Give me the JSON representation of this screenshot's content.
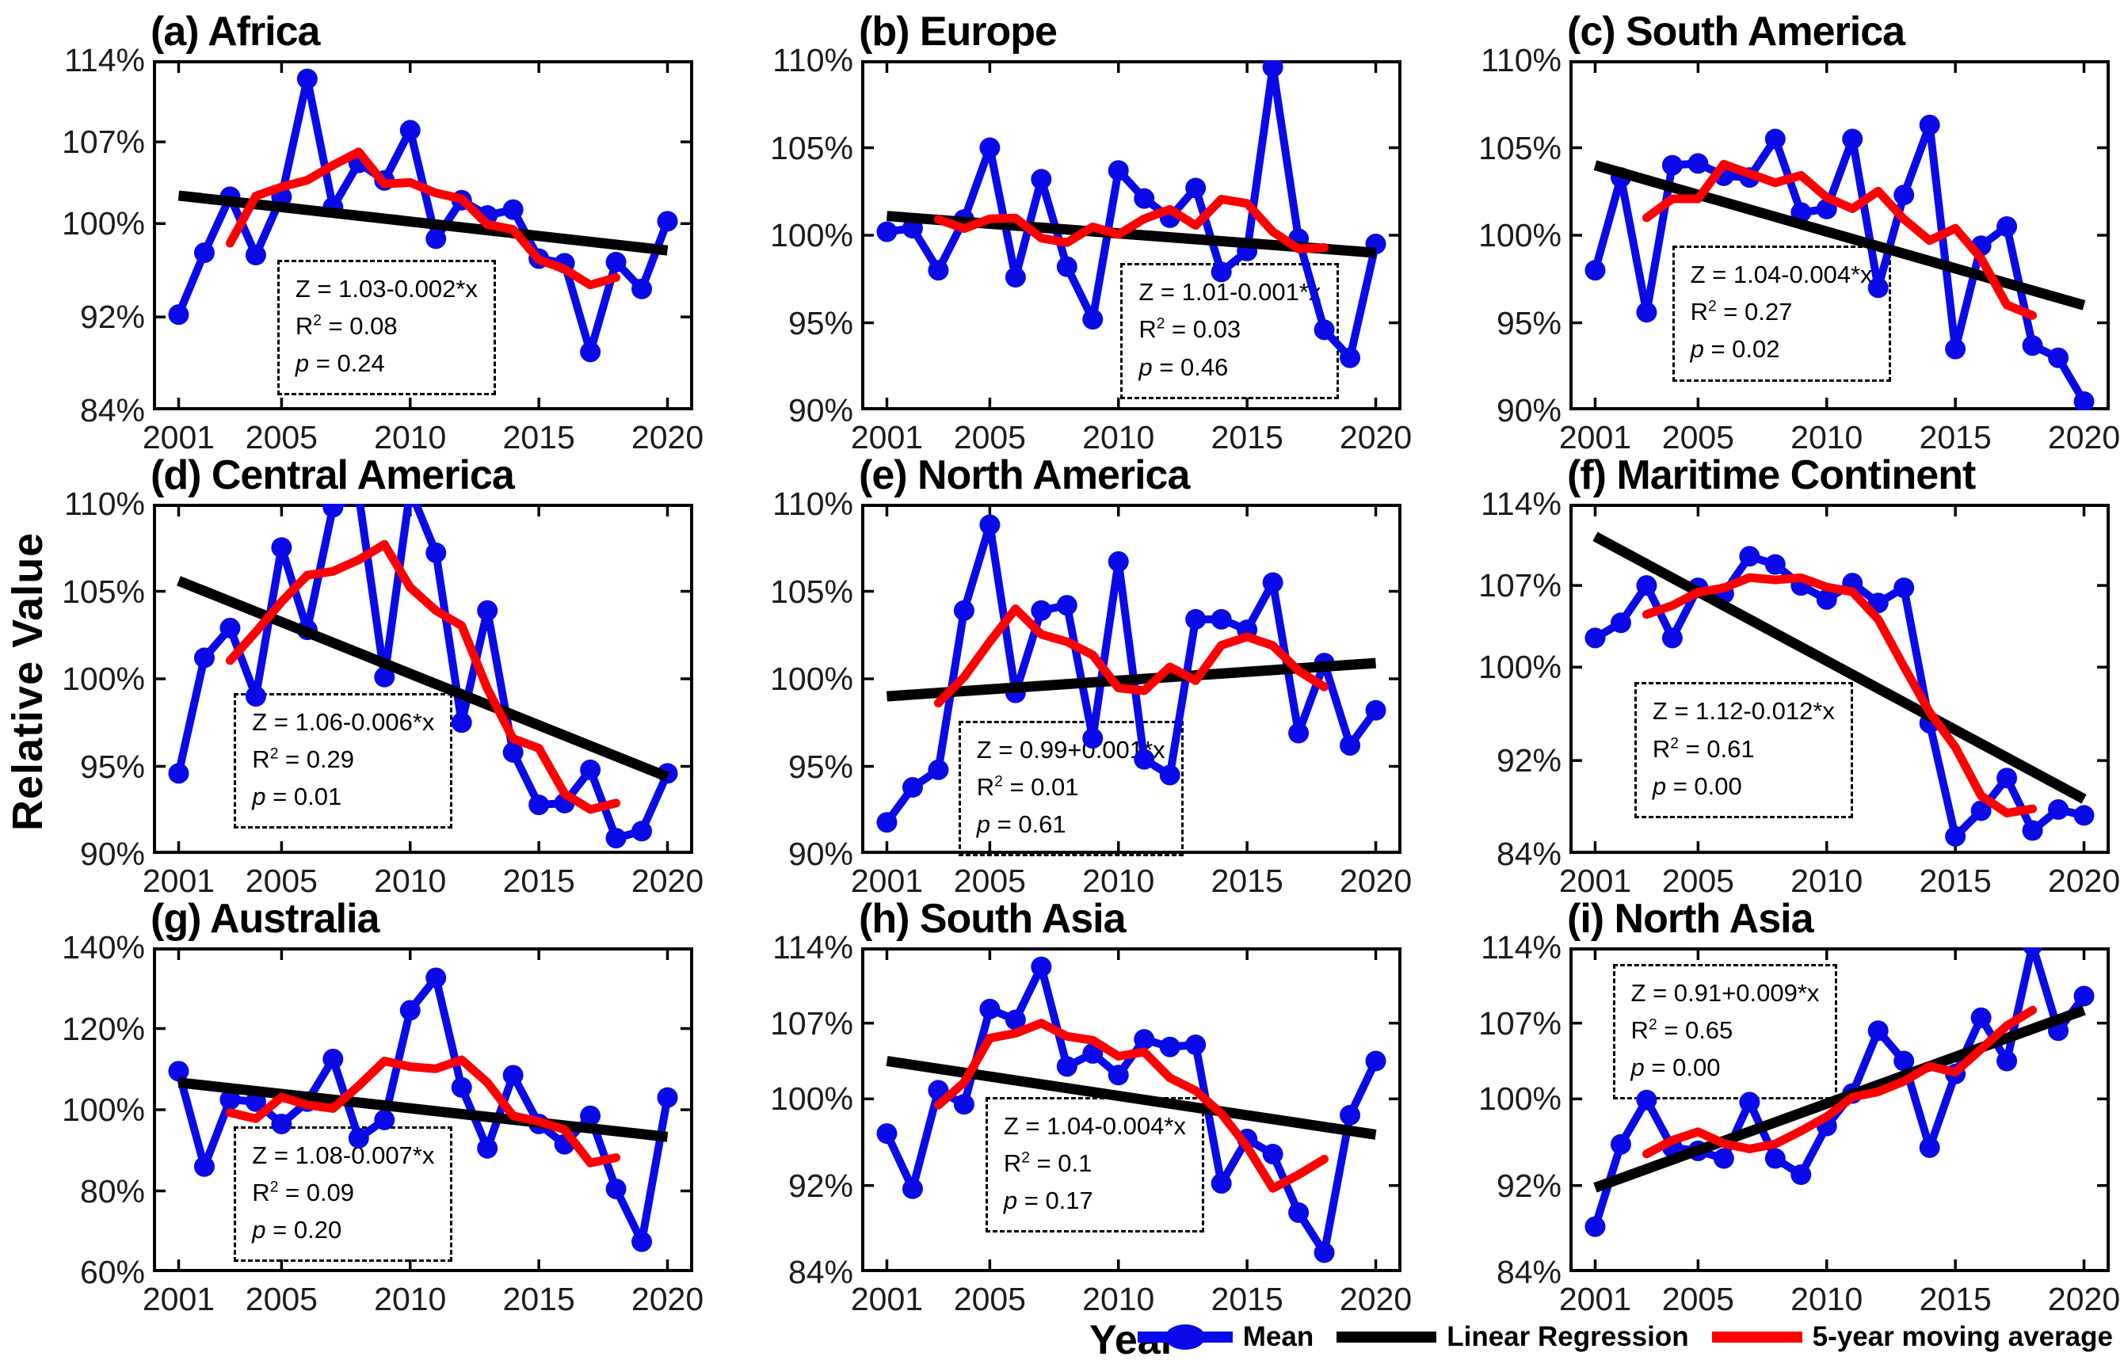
{
  "figure": {
    "ylabel": "Relative Value",
    "xlabel": "Year",
    "colors": {
      "mean": "#0a0ae8",
      "regression": "#000000",
      "moving_average": "#ff0000"
    },
    "legend": [
      {
        "label": "Mean",
        "swatch": "blue-line-with-circle-marker"
      },
      {
        "label": "Linear Regression",
        "swatch": "black-line"
      },
      {
        "label": "5-year moving average",
        "swatch": "red-line"
      }
    ]
  },
  "chart_data": [
    {
      "type": "line",
      "panel": "a",
      "title": "(a) Africa",
      "x": [
        2001,
        2002,
        2003,
        2004,
        2005,
        2006,
        2007,
        2008,
        2009,
        2010,
        2011,
        2012,
        2013,
        2014,
        2015,
        2016,
        2017,
        2018,
        2019,
        2020
      ],
      "series": [
        {
          "name": "Mean",
          "values": [
            92.2,
            97.5,
            102.3,
            97.3,
            102.3,
            112.4,
            101.4,
            105.2,
            103.7,
            108.0,
            98.7,
            102.0,
            100.7,
            101.2,
            97.0,
            96.6,
            89.0,
            96.7,
            94.4,
            100.2
          ]
        },
        {
          "name": "Linear Regression",
          "x_span": [
            2001,
            2020
          ],
          "endpoints_y": [
            102.4,
            97.7
          ]
        },
        {
          "name": "5-year moving average",
          "derived": "centered 5-year moving average of Mean, plotted 2003-2018"
        }
      ],
      "ylim": [
        84,
        114
      ],
      "ytick_values": [
        84,
        92,
        100,
        107,
        114
      ],
      "yticks": [
        "84%",
        "92%",
        "100%",
        "107%",
        "114%"
      ],
      "xticks": [
        2001,
        2005,
        2010,
        2015,
        2020
      ],
      "annotation": {
        "line1": "Z = 1.03-0.002*x",
        "r2_label": "R",
        "r2_sup": "2",
        "r2_eq": " = 0.08",
        "p_label": "p",
        "p_eq": " = 0.24"
      },
      "annotation_pos": {
        "left_pct": 23,
        "top_pct": 57
      }
    },
    {
      "type": "line",
      "panel": "b",
      "title": "(b) Europe",
      "x": [
        2001,
        2002,
        2003,
        2004,
        2005,
        2006,
        2007,
        2008,
        2009,
        2010,
        2011,
        2012,
        2013,
        2014,
        2015,
        2016,
        2017,
        2018,
        2019,
        2020
      ],
      "series": [
        {
          "name": "Mean",
          "values": [
            100.2,
            100.4,
            98.0,
            100.9,
            105.0,
            97.6,
            103.2,
            98.2,
            95.2,
            103.7,
            102.1,
            101.0,
            102.7,
            97.9,
            99.1,
            109.6,
            99.8,
            94.6,
            93.0,
            99.5
          ]
        },
        {
          "name": "Linear Regression",
          "x_span": [
            2001,
            2020
          ],
          "endpoints_y": [
            101.1,
            99.0
          ]
        },
        {
          "name": "5-year moving average",
          "derived": "centered 5-year moving average of Mean, plotted 2003-2018"
        }
      ],
      "ylim": [
        90,
        110
      ],
      "ytick_values": [
        90,
        95,
        100,
        105,
        110
      ],
      "yticks": [
        "90%",
        "95%",
        "100%",
        "105%",
        "110%"
      ],
      "xticks": [
        2001,
        2005,
        2010,
        2015,
        2020
      ],
      "annotation": {
        "line1": "Z = 1.01-0.001*x",
        "r2_label": "R",
        "r2_sup": "2",
        "r2_eq": " = 0.03",
        "p_label": "p",
        "p_eq": " = 0.46"
      },
      "annotation_pos": {
        "left_pct": 48,
        "top_pct": 58
      }
    },
    {
      "type": "line",
      "panel": "c",
      "title": "(c) South America",
      "x": [
        2001,
        2002,
        2003,
        2004,
        2005,
        2006,
        2007,
        2008,
        2009,
        2010,
        2011,
        2012,
        2013,
        2014,
        2015,
        2016,
        2017,
        2018,
        2019,
        2020
      ],
      "series": [
        {
          "name": "Mean",
          "values": [
            98.0,
            103.3,
            95.6,
            104.0,
            104.1,
            103.4,
            103.3,
            105.5,
            101.3,
            101.5,
            105.5,
            97.0,
            102.3,
            106.3,
            93.5,
            99.4,
            100.5,
            93.7,
            93.0,
            90.5
          ]
        },
        {
          "name": "Linear Regression",
          "x_span": [
            2001,
            2020
          ],
          "endpoints_y": [
            104.0,
            96.0
          ]
        },
        {
          "name": "5-year moving average",
          "derived": "centered 5-year moving average of Mean, plotted 2003-2018"
        }
      ],
      "ylim": [
        90,
        110
      ],
      "ytick_values": [
        90,
        95,
        100,
        105,
        110
      ],
      "yticks": [
        "90%",
        "95%",
        "100%",
        "105%",
        "110%"
      ],
      "xticks": [
        2001,
        2005,
        2010,
        2015,
        2020
      ],
      "annotation": {
        "line1": "Z = 1.04-0.004*x",
        "r2_label": "R",
        "r2_sup": "2",
        "r2_eq": " = 0.27",
        "p_label": "p",
        "p_eq": " = 0.02"
      },
      "annotation_pos": {
        "left_pct": 19,
        "top_pct": 53
      }
    },
    {
      "type": "line",
      "panel": "d",
      "title": "(d) Central America",
      "x": [
        2001,
        2002,
        2003,
        2004,
        2005,
        2006,
        2007,
        2008,
        2009,
        2010,
        2011,
        2012,
        2013,
        2014,
        2015,
        2016,
        2017,
        2018,
        2019,
        2020
      ],
      "series": [
        {
          "name": "Mean",
          "values": [
            94.6,
            101.2,
            102.9,
            99.0,
            107.5,
            102.8,
            109.8,
            110.5,
            100.1,
            110.8,
            107.2,
            97.5,
            103.9,
            95.8,
            92.8,
            92.9,
            94.8,
            90.9,
            91.3,
            94.6
          ]
        },
        {
          "name": "Linear Regression",
          "x_span": [
            2001,
            2020
          ],
          "endpoints_y": [
            105.6,
            94.4
          ]
        },
        {
          "name": "5-year moving average",
          "derived": "centered 5-year moving average of Mean, plotted 2003-2018"
        }
      ],
      "ylim": [
        90,
        110
      ],
      "ytick_values": [
        90,
        95,
        100,
        105,
        110
      ],
      "yticks": [
        "90%",
        "95%",
        "100%",
        "105%",
        "110%"
      ],
      "xticks": [
        2001,
        2005,
        2010,
        2015,
        2020
      ],
      "annotation": {
        "line1": "Z = 1.06-0.006*x",
        "r2_label": "R",
        "r2_sup": "2",
        "r2_eq": " = 0.29",
        "p_label": "p",
        "p_eq": " = 0.01"
      },
      "annotation_pos": {
        "left_pct": 15,
        "top_pct": 54
      }
    },
    {
      "type": "line",
      "panel": "e",
      "title": "(e) North America",
      "x": [
        2001,
        2002,
        2003,
        2004,
        2005,
        2006,
        2007,
        2008,
        2009,
        2010,
        2011,
        2012,
        2013,
        2014,
        2015,
        2016,
        2017,
        2018,
        2019,
        2020
      ],
      "series": [
        {
          "name": "Mean",
          "values": [
            91.8,
            93.8,
            94.8,
            103.9,
            108.8,
            99.2,
            103.9,
            104.2,
            96.6,
            106.7,
            95.4,
            94.5,
            103.4,
            103.4,
            102.8,
            105.5,
            96.9,
            100.9,
            96.2,
            98.2
          ]
        },
        {
          "name": "Linear Regression",
          "x_span": [
            2001,
            2020
          ],
          "endpoints_y": [
            99.0,
            100.9
          ]
        },
        {
          "name": "5-year moving average",
          "derived": "centered 5-year moving average of Mean, plotted 2003-2018"
        }
      ],
      "ylim": [
        90,
        110
      ],
      "ytick_values": [
        90,
        95,
        100,
        105,
        110
      ],
      "yticks": [
        "90%",
        "95%",
        "100%",
        "105%",
        "110%"
      ],
      "xticks": [
        2001,
        2005,
        2010,
        2015,
        2020
      ],
      "annotation": {
        "line1": "Z = 0.99+0.001*x",
        "r2_label": "R",
        "r2_sup": "2",
        "r2_eq": " = 0.01",
        "p_label": "p",
        "p_eq": " = 0.61"
      },
      "annotation_pos": {
        "left_pct": 18,
        "top_pct": 62
      }
    },
    {
      "type": "line",
      "panel": "f",
      "title": "(f) Maritime Continent",
      "x": [
        2001,
        2002,
        2003,
        2004,
        2005,
        2006,
        2007,
        2008,
        2009,
        2010,
        2011,
        2012,
        2013,
        2014,
        2015,
        2016,
        2017,
        2018,
        2019,
        2020
      ],
      "series": [
        {
          "name": "Mean",
          "values": [
            102.5,
            103.8,
            107.0,
            102.5,
            106.8,
            106.3,
            109.5,
            108.8,
            107.0,
            105.8,
            107.2,
            105.5,
            106.8,
            95.2,
            85.5,
            87.7,
            90.5,
            86.0,
            87.8,
            87.3
          ]
        },
        {
          "name": "Linear Regression",
          "x_span": [
            2001,
            2020
          ],
          "endpoints_y": [
            111.2,
            88.7
          ]
        },
        {
          "name": "5-year moving average",
          "derived": "centered 5-year moving average of Mean, plotted 2003-2018"
        }
      ],
      "ylim": [
        84,
        114
      ],
      "ytick_values": [
        84,
        92,
        100,
        107,
        114
      ],
      "yticks": [
        "84%",
        "92%",
        "100%",
        "107%",
        "114%"
      ],
      "xticks": [
        2001,
        2005,
        2010,
        2015,
        2020
      ],
      "annotation": {
        "line1": "Z = 1.12-0.012*x",
        "r2_label": "R",
        "r2_sup": "2",
        "r2_eq": " = 0.61",
        "p_label": "p",
        "p_eq": " = 0.00"
      },
      "annotation_pos": {
        "left_pct": 12,
        "top_pct": 51
      }
    },
    {
      "type": "line",
      "panel": "g",
      "title": "(g) Australia",
      "x": [
        2001,
        2002,
        2003,
        2004,
        2005,
        2006,
        2007,
        2008,
        2009,
        2010,
        2011,
        2012,
        2013,
        2014,
        2015,
        2016,
        2017,
        2018,
        2019,
        2020
      ],
      "series": [
        {
          "name": "Mean",
          "values": [
            109.5,
            86.0,
            102.5,
            102.0,
            96.5,
            102.0,
            112.5,
            93.0,
            97.5,
            124.5,
            132.5,
            105.5,
            90.5,
            108.5,
            96.5,
            91.5,
            98.5,
            80.5,
            67.5,
            103.0
          ]
        },
        {
          "name": "Linear Regression",
          "x_span": [
            2001,
            2020
          ],
          "endpoints_y": [
            106.7,
            93.3
          ]
        },
        {
          "name": "5-year moving average",
          "derived": "centered 5-year moving average of Mean, plotted 2003-2018"
        }
      ],
      "ylim": [
        60,
        140
      ],
      "ytick_values": [
        60,
        80,
        100,
        120,
        140
      ],
      "yticks": [
        "60%",
        "80%",
        "100%",
        "120%",
        "140%"
      ],
      "xticks": [
        2001,
        2005,
        2010,
        2015,
        2020
      ],
      "annotation": {
        "line1": "Z = 1.08-0.007*x",
        "r2_label": "R",
        "r2_sup": "2",
        "r2_eq": " = 0.09",
        "p_label": "p",
        "p_eq": " = 0.20"
      },
      "annotation_pos": {
        "left_pct": 15,
        "top_pct": 55
      }
    },
    {
      "type": "line",
      "panel": "h",
      "title": "(h) South Asia",
      "x": [
        2001,
        2002,
        2003,
        2004,
        2005,
        2006,
        2007,
        2008,
        2009,
        2010,
        2011,
        2012,
        2013,
        2014,
        2015,
        2016,
        2017,
        2018,
        2019,
        2020
      ],
      "series": [
        {
          "name": "Mean",
          "values": [
            96.8,
            91.7,
            100.8,
            99.5,
            108.3,
            107.3,
            112.2,
            103.0,
            104.2,
            102.2,
            105.5,
            104.8,
            105.0,
            92.2,
            96.3,
            94.9,
            89.5,
            85.8,
            98.5,
            103.5
          ]
        },
        {
          "name": "Linear Regression",
          "x_span": [
            2001,
            2020
          ],
          "endpoints_y": [
            103.5,
            96.7
          ]
        },
        {
          "name": "5-year moving average",
          "derived": "centered 5-year moving average of Mean, plotted 2003-2018"
        }
      ],
      "ylim": [
        84,
        114
      ],
      "ytick_values": [
        84,
        92,
        100,
        107,
        114
      ],
      "yticks": [
        "84%",
        "92%",
        "100%",
        "107%",
        "114%"
      ],
      "xticks": [
        2001,
        2005,
        2010,
        2015,
        2020
      ],
      "annotation": {
        "line1": "Z = 1.04-0.004*x",
        "r2_label": "R",
        "r2_sup": "2",
        "r2_eq": " = 0.1",
        "p_label": "p",
        "p_eq": " = 0.17"
      },
      "annotation_pos": {
        "left_pct": 23,
        "top_pct": 46
      }
    },
    {
      "type": "line",
      "panel": "i",
      "title": "(i) North Asia",
      "x": [
        2001,
        2002,
        2003,
        2004,
        2005,
        2006,
        2007,
        2008,
        2009,
        2010,
        2011,
        2012,
        2013,
        2014,
        2015,
        2016,
        2017,
        2018,
        2019,
        2020
      ],
      "series": [
        {
          "name": "Mean",
          "values": [
            88.2,
            95.8,
            99.9,
            95.5,
            95.2,
            94.5,
            99.7,
            94.5,
            93.0,
            97.5,
            100.5,
            106.3,
            103.5,
            95.5,
            102.3,
            107.5,
            103.5,
            114.2,
            106.3,
            109.5
          ]
        },
        {
          "name": "Linear Regression",
          "x_span": [
            2001,
            2020
          ],
          "endpoints_y": [
            91.8,
            108.2
          ]
        },
        {
          "name": "5-year moving average",
          "derived": "centered 5-year moving average of Mean, plotted 2003-2018"
        }
      ],
      "ylim": [
        84,
        114
      ],
      "ytick_values": [
        84,
        92,
        100,
        107,
        114
      ],
      "yticks": [
        "84%",
        "92%",
        "100%",
        "107%",
        "114%"
      ],
      "xticks": [
        2001,
        2005,
        2010,
        2015,
        2020
      ],
      "annotation": {
        "line1": "Z = 0.91+0.009*x",
        "r2_label": "R",
        "r2_sup": "2",
        "r2_eq": " = 0.65",
        "p_label": "p",
        "p_eq": " = 0.00"
      },
      "annotation_pos": {
        "left_pct": 8,
        "top_pct": 5
      }
    }
  ]
}
